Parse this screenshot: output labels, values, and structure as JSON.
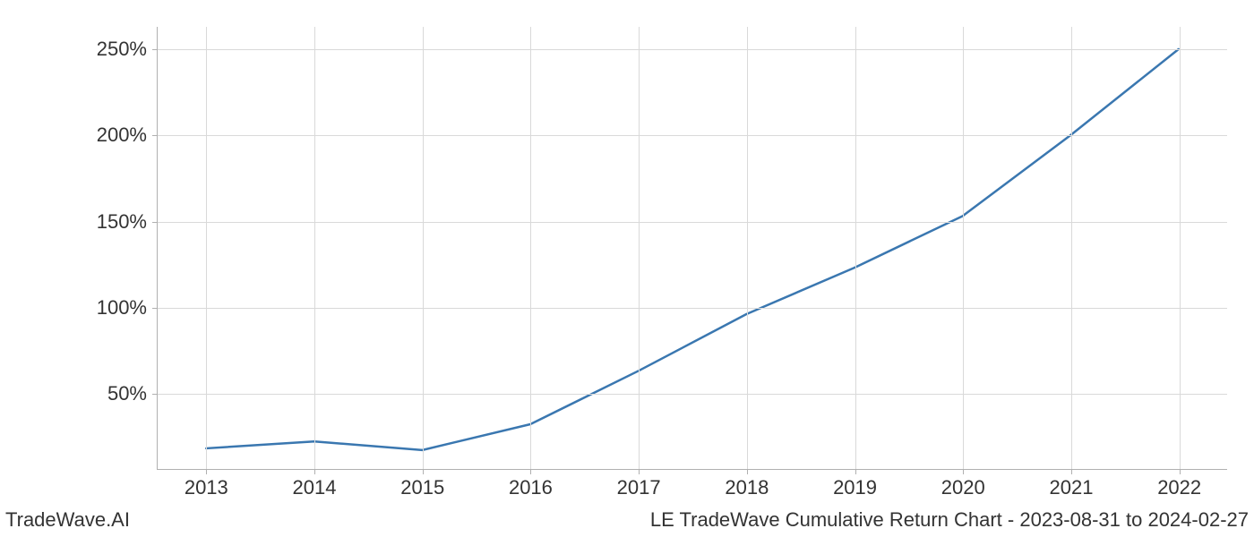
{
  "chart": {
    "type": "line",
    "background_color": "#ffffff",
    "grid_color": "#d9d9d9",
    "axis_color": "#b0b0b0",
    "line_color": "#3a77b0",
    "line_width": 2.5,
    "tick_fontsize": 22,
    "tick_color": "#333333",
    "x": {
      "ticks": [
        2013,
        2014,
        2015,
        2016,
        2017,
        2018,
        2019,
        2020,
        2021,
        2022
      ],
      "labels": [
        "2013",
        "2014",
        "2015",
        "2016",
        "2017",
        "2018",
        "2019",
        "2020",
        "2021",
        "2022"
      ],
      "min": 2012.55,
      "max": 2022.45
    },
    "y": {
      "ticks": [
        50,
        100,
        150,
        200,
        250
      ],
      "labels": [
        "50%",
        "100%",
        "150%",
        "200%",
        "250%"
      ],
      "min": 6,
      "max": 263
    },
    "series": {
      "x": [
        2013,
        2014,
        2015,
        2016,
        2017,
        2018,
        2019,
        2020,
        2021,
        2022
      ],
      "y": [
        18,
        22,
        17,
        32,
        63,
        96,
        123,
        153,
        200,
        250
      ]
    }
  },
  "footer": {
    "left": "TradeWave.AI",
    "right": "LE TradeWave Cumulative Return Chart - 2023-08-31 to 2024-02-27"
  }
}
